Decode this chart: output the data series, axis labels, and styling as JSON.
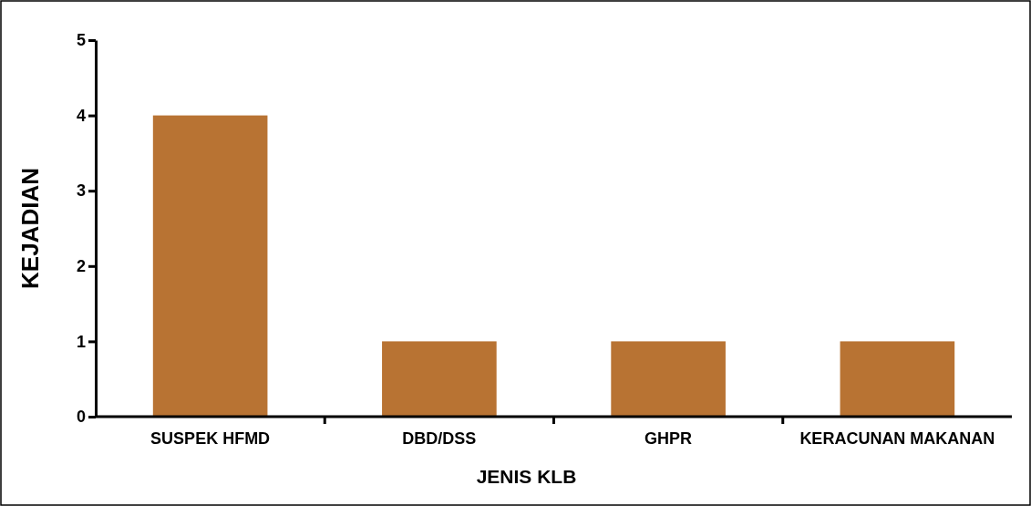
{
  "chart_data": {
    "type": "bar",
    "xlabel": "JENIS KLB",
    "ylabel": "KEJADIAN",
    "categories": [
      "SUSPEK HFMD",
      "DBD/DSS",
      "GHPR",
      "KERACUNAN MAKANAN"
    ],
    "values": [
      4,
      1,
      1,
      1
    ],
    "color": "#b87333",
    "ylim": [
      0,
      5
    ],
    "yticks": [
      0,
      1,
      2,
      3,
      4,
      5
    ],
    "grid": false
  }
}
